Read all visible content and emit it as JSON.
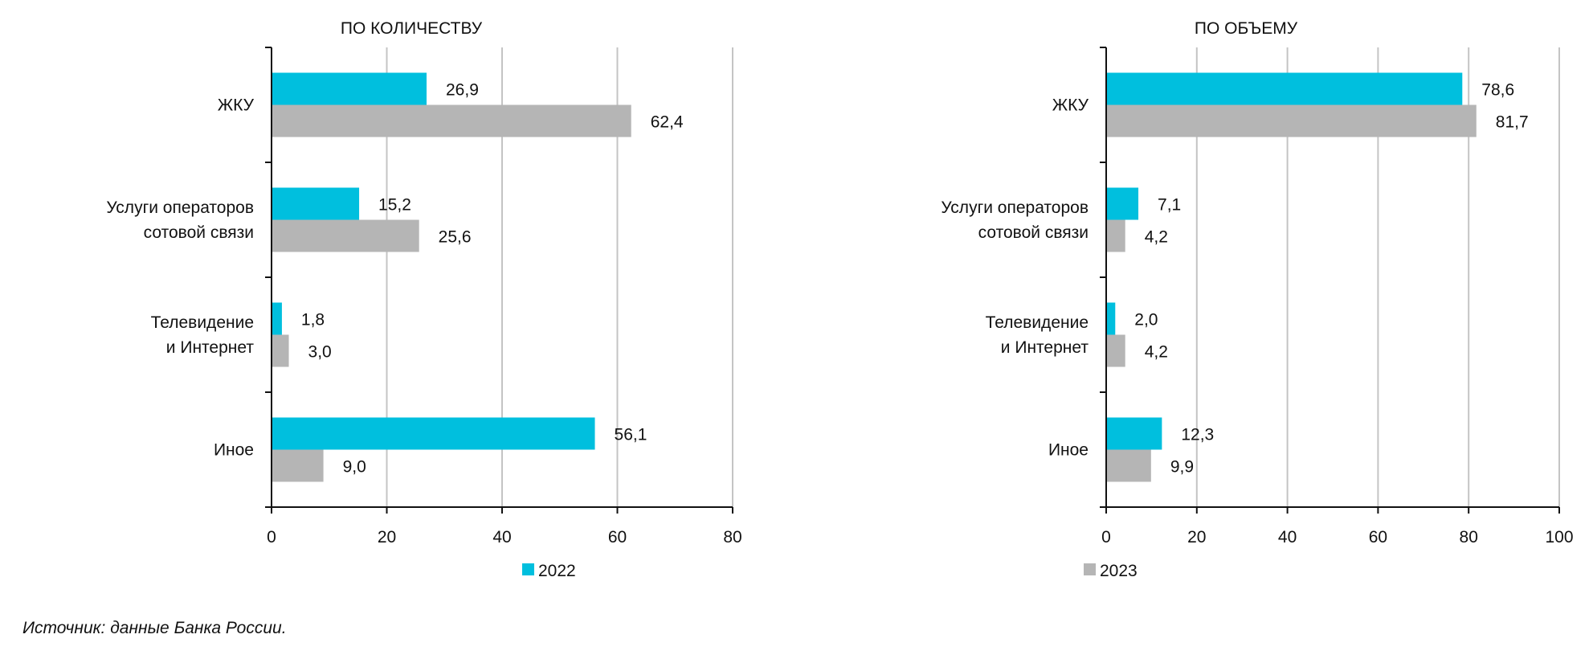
{
  "colors": {
    "s2022": "#00BFDE",
    "s2023": "#B5B5B5",
    "grid": "#C4C4C4",
    "axis": "#111111"
  },
  "source": "Источник: данные Банка России.",
  "chart_data": [
    {
      "type": "bar",
      "orientation": "horizontal",
      "title": "ПО КОЛИЧЕСТВУ",
      "categories": [
        [
          "ЖКУ"
        ],
        [
          "Услуги операторов",
          "сотовой связи"
        ],
        [
          "Телевидение",
          "и Интернет"
        ],
        [
          "Иное"
        ]
      ],
      "series": [
        {
          "name": "2022",
          "values": [
            26.9,
            15.2,
            1.8,
            56.1
          ],
          "labels": [
            "26,9",
            "15,2",
            "1,8",
            "56,1"
          ]
        },
        {
          "name": "2023",
          "values": [
            62.4,
            25.6,
            3.0,
            9.0
          ],
          "labels": [
            "62,4",
            "25,6",
            "3,0",
            "9,0"
          ]
        }
      ],
      "xlim": [
        0,
        80
      ],
      "xticks": [
        "0",
        "20",
        "40",
        "60",
        "80"
      ],
      "grid": true,
      "legend": {
        "entries": [
          "2022"
        ],
        "placement": "bottom"
      }
    },
    {
      "type": "bar",
      "orientation": "horizontal",
      "title": "ПО ОБЪЕМУ",
      "categories": [
        [
          "ЖКУ"
        ],
        [
          "Услуги операторов",
          "сотовой связи"
        ],
        [
          "Телевидение",
          "и Интернет"
        ],
        [
          "Иное"
        ]
      ],
      "series": [
        {
          "name": "2022",
          "values": [
            78.6,
            7.1,
            2.0,
            12.3
          ],
          "labels": [
            "78,6",
            "7,1",
            "2,0",
            "12,3"
          ]
        },
        {
          "name": "2023",
          "values": [
            81.7,
            4.2,
            4.2,
            9.9
          ],
          "labels": [
            "81,7",
            "4,2",
            "4,2",
            "9,9"
          ]
        }
      ],
      "xlim": [
        0,
        100
      ],
      "xticks": [
        "0",
        "20",
        "40",
        "60",
        "80",
        "100"
      ],
      "grid": true,
      "legend": {
        "entries": [
          "2023"
        ],
        "placement": "bottom-left"
      }
    }
  ]
}
